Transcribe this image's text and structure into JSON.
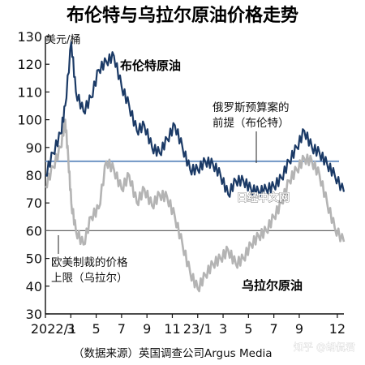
{
  "chart_data": {
    "type": "line",
    "title": "布伦特与乌拉尔原油价格走势",
    "ylabel": "美元/桶",
    "ylim": [
      30,
      130
    ],
    "yticks": [
      30,
      40,
      50,
      60,
      70,
      80,
      90,
      100,
      110,
      120,
      130
    ],
    "xlim": [
      2022.0,
      2023.96
    ],
    "xticks": [
      {
        "value": 2022.0,
        "label": "2022/1"
      },
      {
        "value": 2022.1667,
        "label": "3"
      },
      {
        "value": 2022.3333,
        "label": "5"
      },
      {
        "value": 2022.5,
        "label": "7"
      },
      {
        "value": 2022.6667,
        "label": "9"
      },
      {
        "value": 2022.8333,
        "label": "11"
      },
      {
        "value": 2023.0,
        "label": "23/1"
      },
      {
        "value": 2023.1667,
        "label": "3"
      },
      {
        "value": 2023.3333,
        "label": "5"
      },
      {
        "value": 2023.5,
        "label": "7"
      },
      {
        "value": 2023.6667,
        "label": "9"
      },
      {
        "value": 2023.9167,
        "label": "12"
      }
    ],
    "series": [
      {
        "name": "布伦特原油",
        "color": "#1b3a66",
        "x": [
          2022.0,
          2022.05,
          2022.1,
          2022.13,
          2022.17,
          2022.2,
          2022.25,
          2022.3,
          2022.35,
          2022.4,
          2022.45,
          2022.5,
          2022.55,
          2022.6,
          2022.65,
          2022.7,
          2022.75,
          2022.8,
          2022.85,
          2022.9,
          2022.95,
          2023.0,
          2023.05,
          2023.1,
          2023.15,
          2023.2,
          2023.25,
          2023.3,
          2023.35,
          2023.4,
          2023.45,
          2023.5,
          2023.55,
          2023.6,
          2023.65,
          2023.7,
          2023.75,
          2023.8,
          2023.85,
          2023.9,
          2023.96
        ],
        "y": [
          80,
          88,
          95,
          105,
          128,
          110,
          103,
          108,
          118,
          121,
          123,
          112,
          105,
          96,
          98,
          90,
          88,
          93,
          98,
          90,
          82,
          82,
          85,
          84,
          80,
          73,
          78,
          78,
          75,
          74,
          75,
          76,
          79,
          85,
          90,
          96,
          90,
          88,
          84,
          80,
          74
        ]
      },
      {
        "name": "乌拉尔原油",
        "color": "#b4b4b4",
        "x": [
          2022.0,
          2022.05,
          2022.1,
          2022.13,
          2022.15,
          2022.17,
          2022.2,
          2022.25,
          2022.3,
          2022.35,
          2022.4,
          2022.45,
          2022.5,
          2022.55,
          2022.6,
          2022.65,
          2022.7,
          2022.75,
          2022.8,
          2022.85,
          2022.9,
          2022.95,
          2023.0,
          2023.05,
          2023.1,
          2023.15,
          2023.2,
          2023.25,
          2023.3,
          2023.35,
          2023.4,
          2023.45,
          2023.5,
          2023.55,
          2023.6,
          2023.65,
          2023.7,
          2023.75,
          2023.8,
          2023.85,
          2023.9,
          2023.96
        ],
        "y": [
          76,
          83,
          90,
          100,
          86,
          70,
          60,
          55,
          65,
          68,
          85,
          82,
          75,
          80,
          70,
          75,
          69,
          73,
          72,
          65,
          55,
          45,
          39,
          44,
          48,
          50,
          53,
          48,
          50,
          55,
          58,
          60,
          65,
          70,
          78,
          82,
          86,
          85,
          80,
          70,
          61,
          56
        ]
      }
    ],
    "reference_lines": [
      {
        "y": 85,
        "color": "#6f95c4",
        "label": "俄罗斯预算案的前提（布伦特）"
      },
      {
        "y": 60,
        "color": "#666666",
        "label": "欧美制裁的价格上限（乌拉尔）"
      }
    ],
    "annotations": {
      "brent_label": "布伦特原油",
      "urals_label": "乌拉尔原油",
      "budget_label_line1": "俄罗斯预算案的",
      "budget_label_line2": "前提（布伦特）",
      "cap_label_line1": "欧美制裁的价格",
      "cap_label_line2": "上限（乌拉尔）",
      "watermark_in_chart": "日经中文网"
    },
    "source": "（数据来源）英国调查公司Argus Media",
    "source_watermark": "知乎 @胡侃君"
  }
}
